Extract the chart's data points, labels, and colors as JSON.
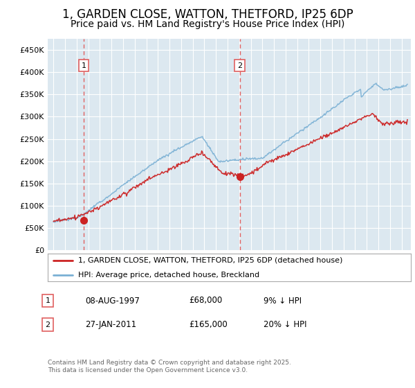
{
  "title": "1, GARDEN CLOSE, WATTON, THETFORD, IP25 6DP",
  "subtitle": "Price paid vs. HM Land Registry's House Price Index (HPI)",
  "title_fontsize": 12,
  "subtitle_fontsize": 10,
  "background_color": "#ffffff",
  "plot_bg_color": "#dce8f0",
  "legend_label_red": "1, GARDEN CLOSE, WATTON, THETFORD, IP25 6DP (detached house)",
  "legend_label_blue": "HPI: Average price, detached house, Breckland",
  "red_color": "#cc2222",
  "blue_color": "#7ab0d4",
  "marker1_date": 1997.6,
  "marker1_value": 68000,
  "marker2_date": 2011.07,
  "marker2_value": 165000,
  "annotation1_label": "1",
  "annotation2_label": "2",
  "footer_text": "Contains HM Land Registry data © Crown copyright and database right 2025.\nThis data is licensed under the Open Government Licence v3.0.",
  "ylim_min": 0,
  "ylim_max": 475000,
  "xmin": 1994.5,
  "xmax": 2025.8,
  "grid_color": "#ffffff",
  "dashed_line_color": "#e06060"
}
